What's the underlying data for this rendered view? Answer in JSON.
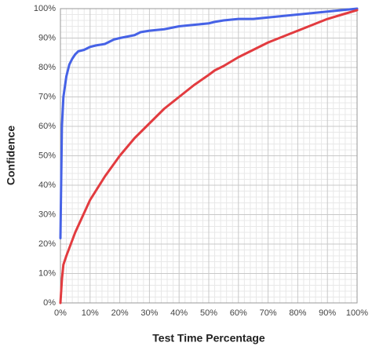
{
  "chart_data": {
    "type": "line",
    "xlabel": "Test Time Percentage",
    "ylabel": "Confidence",
    "xlim": [
      0,
      100
    ],
    "ylim": [
      0,
      100
    ],
    "xticks": [
      {
        "value": 0,
        "label": "0%"
      },
      {
        "value": 10,
        "label": "10%"
      },
      {
        "value": 20,
        "label": "20%"
      },
      {
        "value": 30,
        "label": "30%"
      },
      {
        "value": 40,
        "label": "40%"
      },
      {
        "value": 50,
        "label": "50%"
      },
      {
        "value": 60,
        "label": "60%"
      },
      {
        "value": 70,
        "label": "70%"
      },
      {
        "value": 80,
        "label": "80%"
      },
      {
        "value": 90,
        "label": "90%"
      },
      {
        "value": 100,
        "label": "100%"
      }
    ],
    "yticks": [
      {
        "value": 0,
        "label": "0%"
      },
      {
        "value": 10,
        "label": "10%"
      },
      {
        "value": 20,
        "label": "20%"
      },
      {
        "value": 30,
        "label": "30%"
      },
      {
        "value": 40,
        "label": "40%"
      },
      {
        "value": 50,
        "label": "50%"
      },
      {
        "value": 60,
        "label": "60%"
      },
      {
        "value": 70,
        "label": "70%"
      },
      {
        "value": 80,
        "label": "80%"
      },
      {
        "value": 90,
        "label": "90%"
      },
      {
        "value": 100,
        "label": "100%"
      }
    ],
    "grid": true,
    "minor_grid": true,
    "series": [
      {
        "color": "#4662e6",
        "x": [
          0,
          0.5,
          1,
          2,
          3,
          4,
          5,
          6,
          8,
          10,
          12,
          15,
          18,
          20,
          25,
          27,
          30,
          35,
          40,
          45,
          50,
          52,
          55,
          60,
          65,
          70,
          75,
          80,
          85,
          90,
          95,
          100
        ],
        "values": [
          22,
          60,
          70,
          77,
          81,
          83,
          84.5,
          85.5,
          86,
          87,
          87.5,
          88,
          89.5,
          90,
          91,
          92,
          92.5,
          93,
          94,
          94.5,
          95,
          95.5,
          96,
          96.5,
          96.5,
          97,
          97.5,
          98,
          98.5,
          99,
          99.5,
          100
        ]
      },
      {
        "color": "#e23b3f",
        "x": [
          0,
          0.5,
          1,
          2,
          5,
          10,
          15,
          20,
          25,
          30,
          35,
          40,
          45,
          50,
          52,
          55,
          60,
          65,
          70,
          75,
          80,
          85,
          90,
          95,
          100
        ],
        "values": [
          0,
          8,
          13,
          16,
          24,
          35,
          43,
          50,
          56,
          61,
          66,
          70,
          74,
          77.5,
          79,
          80.5,
          83.5,
          86,
          88.5,
          90.5,
          92.5,
          94.5,
          96.5,
          98,
          99.5
        ]
      }
    ]
  }
}
